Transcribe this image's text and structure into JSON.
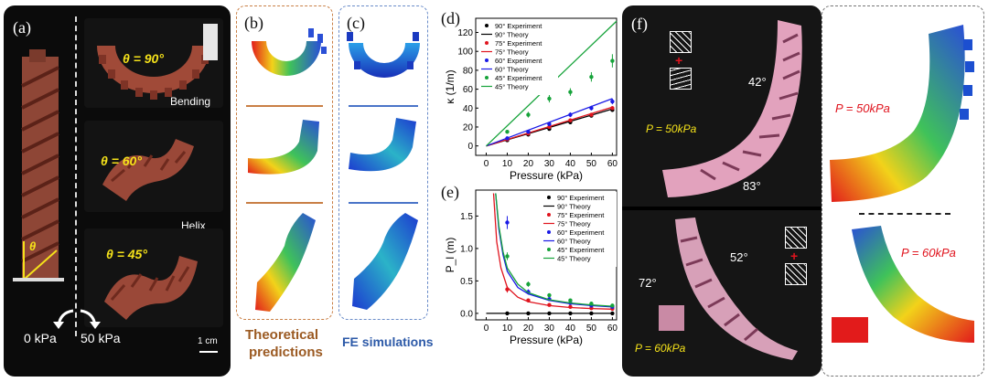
{
  "panel_a": {
    "label": "(a)",
    "theta90": "θ = 90°",
    "theta60": "θ = 60°",
    "theta45": "θ = 45°",
    "bending": "Bending",
    "helix": "Helix",
    "theta_symbol": "θ",
    "p0": "0 kPa",
    "p50": "50 kPa",
    "scale": "1 cm"
  },
  "panel_b": {
    "label": "(b)",
    "caption_line1": "Theoretical",
    "caption_line2": "predictions",
    "caption_color": "#9b5a22"
  },
  "panel_c": {
    "label": "(c)",
    "caption": "FE simulations",
    "caption_color": "#2d5aa8"
  },
  "panel_d": {
    "label": "(d)"
  },
  "panel_e": {
    "label": "(e)"
  },
  "panel_f": {
    "label": "(f)",
    "angle42": "42°",
    "angle83": "83°",
    "angle52": "52°",
    "angle72": "72°",
    "p50": "P = 50kPa",
    "p60": "P = 60kPa",
    "plus": "+",
    "sim_p50": "P = 50kPa",
    "sim_p60": "P = 60kPa"
  },
  "colors": {
    "90": "#000000",
    "75": "#e0141e",
    "60": "#1a1ae6",
    "45": "#16a33a",
    "yellow": "#f5e21a",
    "red_label": "#e0141e"
  },
  "chart_data": [
    {
      "id": "d",
      "type": "scatter",
      "xlabel": "Pressure (kPa)",
      "ylabel": "κ (1/m)",
      "xlim": [
        -5,
        62
      ],
      "ylim": [
        -10,
        135
      ],
      "xticks": [
        0,
        10,
        20,
        30,
        40,
        50,
        60
      ],
      "yticks": [
        0,
        20,
        40,
        60,
        80,
        100,
        120
      ],
      "legend": "top-left",
      "legend_entries": [
        "90° Experiment",
        "90° Theory",
        "75° Experiment",
        "75° Theory",
        "60° Experiment",
        "60° Theory",
        "45° Experiment",
        "45° Theory"
      ],
      "series": [
        {
          "name": "90° Experiment",
          "kind": "points",
          "color_key": "90",
          "x": [
            10,
            20,
            30,
            40,
            50,
            60
          ],
          "y": [
            6,
            12,
            18,
            25,
            32,
            38
          ],
          "err": [
            1,
            1.5,
            1.5,
            2,
            2,
            2
          ]
        },
        {
          "name": "90° Theory",
          "kind": "line",
          "color_key": "90",
          "x": [
            0,
            60
          ],
          "y": [
            0,
            39
          ]
        },
        {
          "name": "75° Experiment",
          "kind": "points",
          "color_key": "75",
          "x": [
            10,
            20,
            30,
            40,
            50,
            60
          ],
          "y": [
            7,
            13,
            20,
            27,
            33,
            40
          ],
          "err": [
            1,
            1.5,
            1.5,
            2,
            2,
            2
          ]
        },
        {
          "name": "75° Theory",
          "kind": "line",
          "color_key": "75",
          "x": [
            0,
            60
          ],
          "y": [
            0,
            41
          ]
        },
        {
          "name": "60° Experiment",
          "kind": "points",
          "color_key": "60",
          "x": [
            10,
            20,
            30,
            40,
            50,
            60
          ],
          "y": [
            8,
            15,
            23,
            33,
            40,
            47
          ],
          "err": [
            1.5,
            2,
            2,
            2.5,
            2.5,
            3
          ]
        },
        {
          "name": "60° Theory",
          "kind": "line",
          "color_key": "60",
          "x": [
            0,
            60
          ],
          "y": [
            0,
            50
          ]
        },
        {
          "name": "45° Experiment",
          "kind": "points",
          "color_key": "45",
          "x": [
            10,
            20,
            30,
            40,
            50,
            60
          ],
          "y": [
            15,
            33,
            50,
            57,
            73,
            90
          ],
          "err": [
            2,
            3,
            4,
            4,
            5,
            7
          ]
        },
        {
          "name": "45° Theory",
          "kind": "line",
          "color_key": "45",
          "x": [
            0,
            62
          ],
          "y": [
            0,
            132
          ]
        }
      ]
    },
    {
      "id": "e",
      "type": "scatter",
      "xlabel": "Pressure (kPa)",
      "ylabel": "P_l (m)",
      "xlim": [
        -5,
        62
      ],
      "ylim": [
        -0.1,
        1.9
      ],
      "xticks": [
        0,
        10,
        20,
        30,
        40,
        50,
        60
      ],
      "yticks": [
        0.0,
        0.5,
        1.0,
        1.5
      ],
      "legend": "top-right",
      "legend_entries": [
        "90° Experiment",
        "90° Theory",
        "75° Experiment",
        "75° Theory",
        "60° Experiment",
        "60° Theory",
        "45° Experiment",
        "45° Theory"
      ],
      "series": [
        {
          "name": "90° Experiment",
          "kind": "points",
          "color_key": "90",
          "x": [
            10,
            20,
            30,
            40,
            50,
            60
          ],
          "y": [
            0,
            0,
            0,
            0,
            0,
            0
          ],
          "err": [
            0,
            0,
            0,
            0,
            0,
            0
          ]
        },
        {
          "name": "90° Theory",
          "kind": "line",
          "color_key": "90",
          "x": [
            0,
            10,
            20,
            30,
            40,
            50,
            60
          ],
          "y": [
            0,
            0,
            0,
            0,
            0,
            0,
            0
          ]
        },
        {
          "name": "75° Experiment",
          "kind": "points",
          "color_key": "75",
          "x": [
            10,
            20,
            30,
            40,
            50,
            60
          ],
          "y": [
            0.37,
            0.2,
            0.13,
            0.1,
            0.08,
            0.07
          ],
          "err": [
            0.05,
            0.03,
            0.02,
            0.02,
            0.01,
            0.01
          ]
        },
        {
          "name": "75° Theory",
          "kind": "line",
          "color_key": "75",
          "x": [
            3.5,
            5,
            7,
            10,
            15,
            20,
            30,
            40,
            50,
            60
          ],
          "y": [
            1.85,
            1.1,
            0.7,
            0.4,
            0.25,
            0.18,
            0.12,
            0.09,
            0.075,
            0.065
          ]
        },
        {
          "name": "60° Experiment",
          "kind": "points",
          "color_key": "60",
          "x": [
            10,
            20,
            30,
            40,
            50,
            60
          ],
          "y": [
            1.4,
            0.33,
            0.22,
            0.16,
            0.12,
            0.1
          ],
          "err": [
            0.1,
            0.04,
            0.03,
            0.02,
            0.02,
            0.02
          ]
        },
        {
          "name": "60° Theory",
          "kind": "line",
          "color_key": "60",
          "x": [
            4.5,
            6,
            8,
            10,
            15,
            20,
            30,
            40,
            50,
            60
          ],
          "y": [
            1.85,
            1.3,
            0.9,
            0.65,
            0.4,
            0.3,
            0.2,
            0.15,
            0.12,
            0.1
          ]
        },
        {
          "name": "45° Experiment",
          "kind": "points",
          "color_key": "45",
          "x": [
            10,
            20,
            30,
            40,
            50,
            60
          ],
          "y": [
            0.88,
            0.45,
            0.28,
            0.2,
            0.15,
            0.12
          ],
          "err": [
            0.06,
            0.04,
            0.03,
            0.02,
            0.02,
            0.02
          ]
        },
        {
          "name": "45° Theory",
          "kind": "line",
          "color_key": "45",
          "x": [
            4.5,
            6,
            8,
            10,
            15,
            20,
            30,
            40,
            50,
            60
          ],
          "y": [
            1.85,
            1.35,
            0.95,
            0.7,
            0.45,
            0.32,
            0.21,
            0.16,
            0.13,
            0.11
          ]
        }
      ]
    }
  ]
}
